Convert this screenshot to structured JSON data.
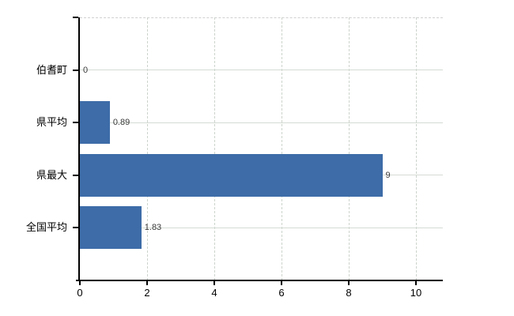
{
  "chart_data": {
    "type": "bar",
    "orientation": "horizontal",
    "categories": [
      "伯耆町",
      "県平均",
      "県最大",
      "全国平均"
    ],
    "values": [
      0,
      0.89,
      9,
      1.83
    ],
    "value_labels": [
      "0",
      "0.89",
      "9",
      "1.83"
    ],
    "x_tick_labels": [
      "0",
      "2",
      "4",
      "6",
      "8",
      "10"
    ],
    "x_ticks": [
      0,
      2,
      4,
      6,
      8,
      10
    ],
    "xlim": [
      0,
      10.8
    ],
    "title": "",
    "xlabel": "",
    "ylabel": "",
    "legend": null,
    "grid": true,
    "colors": {
      "bar": "#3d6ca8",
      "axis": "#000000",
      "h_gridline": "#d4dbd4",
      "v_gridline": "#ccd4cc",
      "top_border": "#d0d0d0",
      "value_label_text": "#3a3a3a",
      "axis_label_text": "#000000",
      "background": "#ffffff"
    }
  }
}
